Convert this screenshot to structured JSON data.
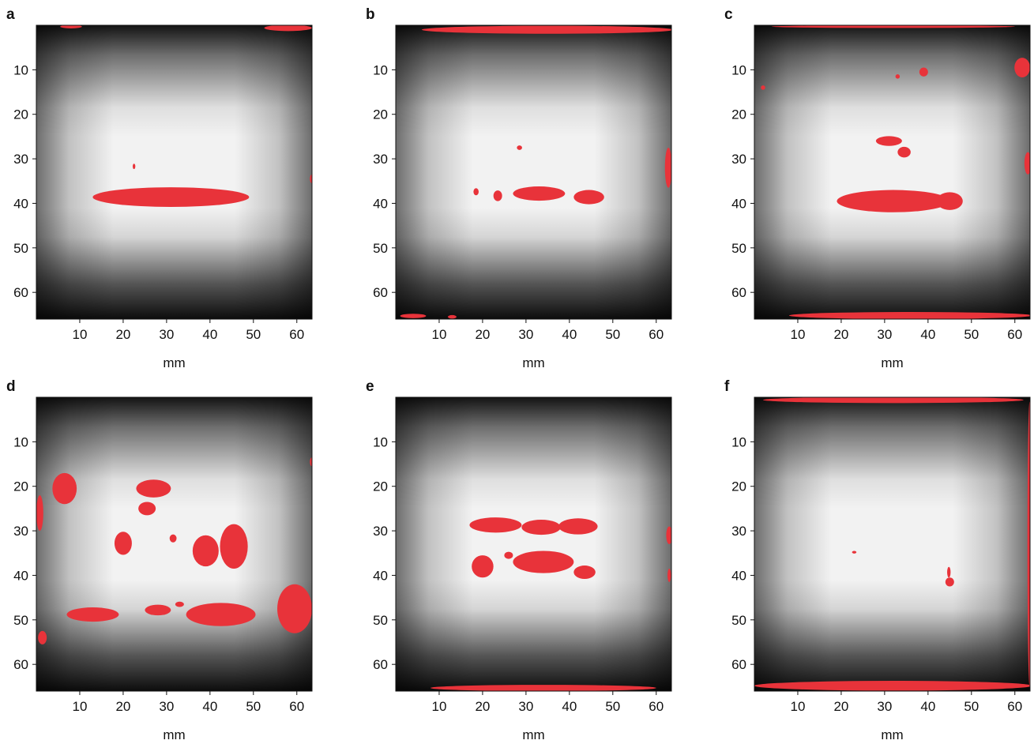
{
  "figure": {
    "axis_unit_label": "mm",
    "panels": [
      {
        "letter": "a",
        "x_ticks": [
          "10",
          "20",
          "30",
          "40",
          "50",
          "60"
        ],
        "y_ticks": [
          "10",
          "20",
          "30",
          "40",
          "50",
          "60"
        ],
        "xlabel": "mm",
        "highlight_color": "#e8333a",
        "regions_mm": [
          {
            "cx": 31,
            "cy": 38.6,
            "rx": 18,
            "ry": 2.2
          },
          {
            "cx": 22.5,
            "cy": 31.7,
            "rx": 0.3,
            "ry": 0.6
          },
          {
            "cx": 63.5,
            "cy": 34.5,
            "rx": 0.5,
            "ry": 1
          },
          {
            "cx": 8,
            "cy": 0.3,
            "rx": 2.5,
            "ry": 0.4
          },
          {
            "cx": 58,
            "cy": 0.6,
            "rx": 5.5,
            "ry": 0.7
          }
        ]
      },
      {
        "letter": "b",
        "x_ticks": [
          "10",
          "20",
          "30",
          "40",
          "50",
          "60"
        ],
        "y_ticks": [
          "10",
          "20",
          "30",
          "40",
          "50",
          "60"
        ],
        "xlabel": "mm",
        "highlight_color": "#e8333a",
        "regions_mm": [
          {
            "cx": 35,
            "cy": 1,
            "rx": 29,
            "ry": 0.9
          },
          {
            "cx": 33,
            "cy": 37.8,
            "rx": 6,
            "ry": 1.6
          },
          {
            "cx": 44.5,
            "cy": 38.6,
            "rx": 3.5,
            "ry": 1.6
          },
          {
            "cx": 23.5,
            "cy": 38.3,
            "rx": 1,
            "ry": 1.2
          },
          {
            "cx": 18.5,
            "cy": 37.4,
            "rx": 0.6,
            "ry": 0.8
          },
          {
            "cx": 28.5,
            "cy": 27.5,
            "rx": 0.6,
            "ry": 0.5
          },
          {
            "cx": 62.8,
            "cy": 32,
            "rx": 0.8,
            "ry": 4.5
          },
          {
            "cx": 4,
            "cy": 65.3,
            "rx": 3,
            "ry": 0.5
          },
          {
            "cx": 13,
            "cy": 65.5,
            "rx": 1,
            "ry": 0.4
          }
        ]
      },
      {
        "letter": "c",
        "x_ticks": [
          "10",
          "20",
          "30",
          "40",
          "50",
          "60"
        ],
        "y_ticks": [
          "10",
          "20",
          "30",
          "40",
          "50",
          "60"
        ],
        "xlabel": "mm",
        "highlight_color": "#e8333a",
        "regions_mm": [
          {
            "cx": 32,
            "cy": 39.5,
            "rx": 13,
            "ry": 2.5
          },
          {
            "cx": 45,
            "cy": 39.5,
            "rx": 3,
            "ry": 2
          },
          {
            "cx": 31,
            "cy": 26,
            "rx": 3,
            "ry": 1.1
          },
          {
            "cx": 34.5,
            "cy": 28.5,
            "rx": 1.5,
            "ry": 1.2
          },
          {
            "cx": 61.7,
            "cy": 9.5,
            "rx": 1.8,
            "ry": 2.2
          },
          {
            "cx": 63,
            "cy": 31,
            "rx": 0.8,
            "ry": 2.5
          },
          {
            "cx": 39,
            "cy": 10.5,
            "rx": 1,
            "ry": 1
          },
          {
            "cx": 33,
            "cy": 11.5,
            "rx": 0.5,
            "ry": 0.5
          },
          {
            "cx": 2,
            "cy": 14,
            "rx": 0.5,
            "ry": 0.5
          },
          {
            "cx": 36,
            "cy": 65.2,
            "rx": 28,
            "ry": 0.8
          },
          {
            "cx": 32,
            "cy": 0.3,
            "rx": 28,
            "ry": 0.3
          }
        ]
      },
      {
        "letter": "d",
        "x_ticks": [
          "10",
          "20",
          "30",
          "40",
          "50",
          "60"
        ],
        "y_ticks": [
          "10",
          "20",
          "30",
          "40",
          "50",
          "60"
        ],
        "xlabel": "mm",
        "highlight_color": "#e8333a",
        "regions_mm": [
          {
            "cx": 6.5,
            "cy": 20.5,
            "rx": 2.8,
            "ry": 3.5
          },
          {
            "cx": 0.8,
            "cy": 26,
            "rx": 0.8,
            "ry": 4
          },
          {
            "cx": 27,
            "cy": 20.5,
            "rx": 4,
            "ry": 2
          },
          {
            "cx": 25.5,
            "cy": 25,
            "rx": 2,
            "ry": 1.5
          },
          {
            "cx": 20,
            "cy": 32.8,
            "rx": 2,
            "ry": 2.6
          },
          {
            "cx": 31.5,
            "cy": 31.7,
            "rx": 0.8,
            "ry": 0.9
          },
          {
            "cx": 39,
            "cy": 34.5,
            "rx": 3,
            "ry": 3.5
          },
          {
            "cx": 45.5,
            "cy": 33.5,
            "rx": 3.2,
            "ry": 5
          },
          {
            "cx": 13,
            "cy": 48.8,
            "rx": 6,
            "ry": 1.6
          },
          {
            "cx": 28,
            "cy": 47.8,
            "rx": 3,
            "ry": 1.2
          },
          {
            "cx": 42.5,
            "cy": 48.8,
            "rx": 8,
            "ry": 2.6
          },
          {
            "cx": 59.5,
            "cy": 47.5,
            "rx": 4,
            "ry": 5.5
          },
          {
            "cx": 63.5,
            "cy": 14.5,
            "rx": 0.5,
            "ry": 1
          },
          {
            "cx": 1.4,
            "cy": 54,
            "rx": 1,
            "ry": 1.5
          },
          {
            "cx": 33,
            "cy": 46.5,
            "rx": 1,
            "ry": 0.6
          }
        ]
      },
      {
        "letter": "e",
        "x_ticks": [
          "10",
          "20",
          "30",
          "40",
          "50",
          "60"
        ],
        "y_ticks": [
          "10",
          "20",
          "30",
          "40",
          "50",
          "60"
        ],
        "xlabel": "mm",
        "highlight_color": "#e8333a",
        "regions_mm": [
          {
            "cx": 23,
            "cy": 28.7,
            "rx": 6,
            "ry": 1.7
          },
          {
            "cx": 33.5,
            "cy": 29.2,
            "rx": 4.5,
            "ry": 1.7
          },
          {
            "cx": 42,
            "cy": 29,
            "rx": 4.5,
            "ry": 1.8
          },
          {
            "cx": 20,
            "cy": 38,
            "rx": 2.5,
            "ry": 2.5
          },
          {
            "cx": 34,
            "cy": 37,
            "rx": 7,
            "ry": 2.5
          },
          {
            "cx": 43.5,
            "cy": 39.3,
            "rx": 2.5,
            "ry": 1.5
          },
          {
            "cx": 26,
            "cy": 35.5,
            "rx": 1,
            "ry": 0.8
          },
          {
            "cx": 63,
            "cy": 31,
            "rx": 0.7,
            "ry": 2
          },
          {
            "cx": 63,
            "cy": 40,
            "rx": 0.4,
            "ry": 1.5
          },
          {
            "cx": 34,
            "cy": 65.3,
            "rx": 26,
            "ry": 0.7
          }
        ]
      },
      {
        "letter": "f",
        "x_ticks": [
          "10",
          "20",
          "30",
          "40",
          "50",
          "60"
        ],
        "y_ticks": [
          "10",
          "20",
          "30",
          "40",
          "50",
          "60"
        ],
        "xlabel": "mm",
        "highlight_color": "#e8333a",
        "regions_mm": [
          {
            "cx": 45,
            "cy": 41.5,
            "rx": 1,
            "ry": 1
          },
          {
            "cx": 44.8,
            "cy": 39.3,
            "rx": 0.4,
            "ry": 1.2
          },
          {
            "cx": 23,
            "cy": 34.8,
            "rx": 0.5,
            "ry": 0.3
          },
          {
            "cx": 32,
            "cy": 0.6,
            "rx": 30,
            "ry": 0.7
          },
          {
            "cx": 32,
            "cy": 64.8,
            "rx": 32,
            "ry": 1.1
          },
          {
            "cx": 63.4,
            "cy": 33,
            "rx": 0.5,
            "ry": 32
          }
        ]
      }
    ]
  }
}
